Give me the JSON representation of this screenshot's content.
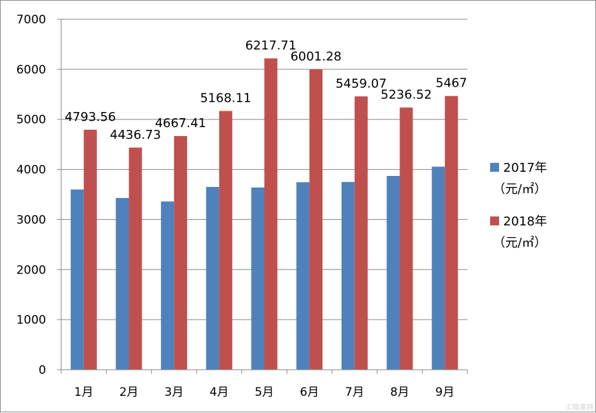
{
  "chart_data": {
    "type": "bar",
    "title": "",
    "xlabel": "",
    "ylabel": "",
    "categories": [
      "1月",
      "2月",
      "3月",
      "4月",
      "5月",
      "6月",
      "7月",
      "8月",
      "9月"
    ],
    "series": [
      {
        "name": "2017年（元/㎡）",
        "legend_lines": [
          "2017年",
          "（元/㎡）"
        ],
        "color": "#4f81bd",
        "values": [
          3600,
          3430,
          3360,
          3650,
          3640,
          3745,
          3750,
          3870,
          4055
        ]
      },
      {
        "name": "2018年（元/㎡）",
        "legend_lines": [
          "2018年",
          "（元/㎡）"
        ],
        "color": "#c0504d",
        "values": [
          4793.56,
          4436.73,
          4667.41,
          5168.11,
          6217.71,
          6001.28,
          5459.07,
          5236.52,
          5467
        ],
        "data_labels": [
          "4793.56",
          "4436.73",
          "4667.41",
          "5168.11",
          "6217.71",
          "6001.28",
          "5459.07",
          "5236.52",
          "5467"
        ]
      }
    ],
    "ylim": [
      0,
      7000
    ],
    "yticks": [
      0,
      1000,
      2000,
      3000,
      4000,
      5000,
      6000,
      7000
    ],
    "grid": true,
    "legend_position": "right"
  },
  "watermark": "Ⓒ隐意网"
}
